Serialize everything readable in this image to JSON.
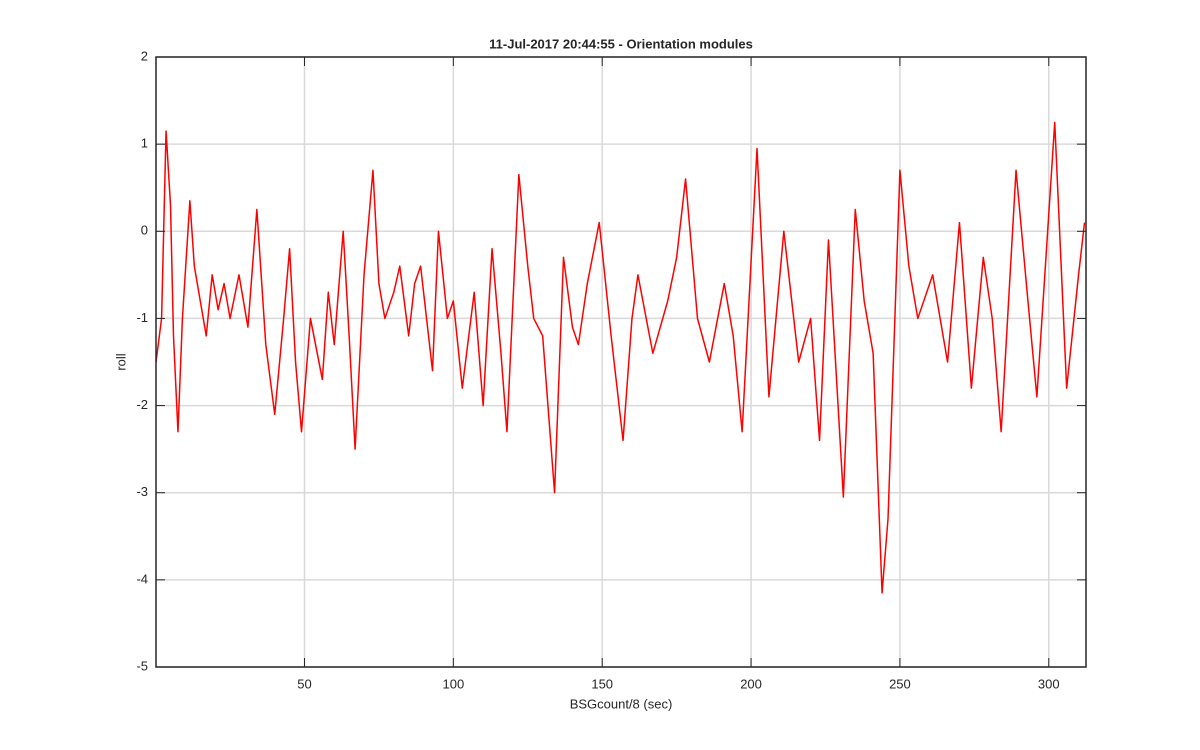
{
  "chart_data": {
    "type": "line",
    "title": "11-Jul-2017 20:44:55 - Orientation modules",
    "xlabel": "BSGcount/8 (sec)",
    "ylabel": "roll",
    "x": [
      0.125,
      2,
      3.5,
      5,
      6,
      7.5,
      9,
      11.5,
      13,
      15,
      17,
      19,
      21,
      23,
      25,
      28,
      31,
      34,
      37,
      40,
      43,
      45,
      47,
      49,
      52,
      56,
      58,
      60,
      63,
      65,
      67,
      70,
      73,
      75,
      77,
      80,
      82,
      85,
      87,
      89,
      91,
      93,
      95,
      98,
      100,
      103,
      107,
      110,
      113,
      116,
      118,
      122,
      125,
      127,
      130,
      134,
      137,
      140,
      142,
      145,
      149,
      153,
      157,
      160,
      162,
      167,
      172,
      175,
      178,
      182,
      186,
      191,
      194,
      197,
      202,
      206,
      211,
      216,
      220,
      223,
      226,
      231,
      235,
      238,
      241,
      244,
      246,
      250,
      253,
      256,
      261,
      266,
      270,
      274,
      278,
      281,
      284,
      289,
      293,
      296,
      302,
      306,
      310,
      312
    ],
    "series": [
      {
        "name": "roll",
        "color": "#ff0000",
        "values": [
          -1.5,
          -1.0,
          1.15,
          0.3,
          -1.2,
          -2.3,
          -1.0,
          0.35,
          -0.4,
          -0.8,
          -1.2,
          -0.5,
          -0.9,
          -0.6,
          -1.0,
          -0.5,
          -1.1,
          0.25,
          -1.3,
          -2.1,
          -1.0,
          -0.2,
          -1.5,
          -2.3,
          -1.0,
          -1.7,
          -0.7,
          -1.3,
          0.0,
          -1.2,
          -2.5,
          -0.5,
          0.7,
          -0.6,
          -1.0,
          -0.7,
          -0.4,
          -1.2,
          -0.6,
          -0.4,
          -1.0,
          -1.6,
          0.0,
          -1.0,
          -0.8,
          -1.8,
          -0.7,
          -2.0,
          -0.2,
          -1.4,
          -2.3,
          0.65,
          -0.4,
          -1.0,
          -1.2,
          -3.0,
          -0.3,
          -1.1,
          -1.3,
          -0.6,
          0.1,
          -1.2,
          -2.4,
          -1.0,
          -0.5,
          -1.4,
          -0.8,
          -0.3,
          0.6,
          -1.0,
          -1.5,
          -0.6,
          -1.2,
          -2.3,
          0.95,
          -1.9,
          0.0,
          -1.5,
          -1.0,
          -2.4,
          -0.1,
          -3.05,
          0.25,
          -0.8,
          -1.4,
          -4.15,
          -3.3,
          0.7,
          -0.4,
          -1.0,
          -0.5,
          -1.5,
          0.1,
          -1.8,
          -0.3,
          -1.0,
          -2.3,
          0.7,
          -0.8,
          -1.9,
          1.25,
          -1.8,
          -0.5,
          0.1
        ]
      }
    ],
    "xlim": [
      0.125,
      312.5
    ],
    "ylim": [
      -5,
      2
    ],
    "xticks": [
      50,
      100,
      150,
      200,
      250,
      300
    ],
    "yticks": [
      -5,
      -4,
      -3,
      -2,
      -1,
      0,
      1,
      2
    ],
    "grid": true
  }
}
